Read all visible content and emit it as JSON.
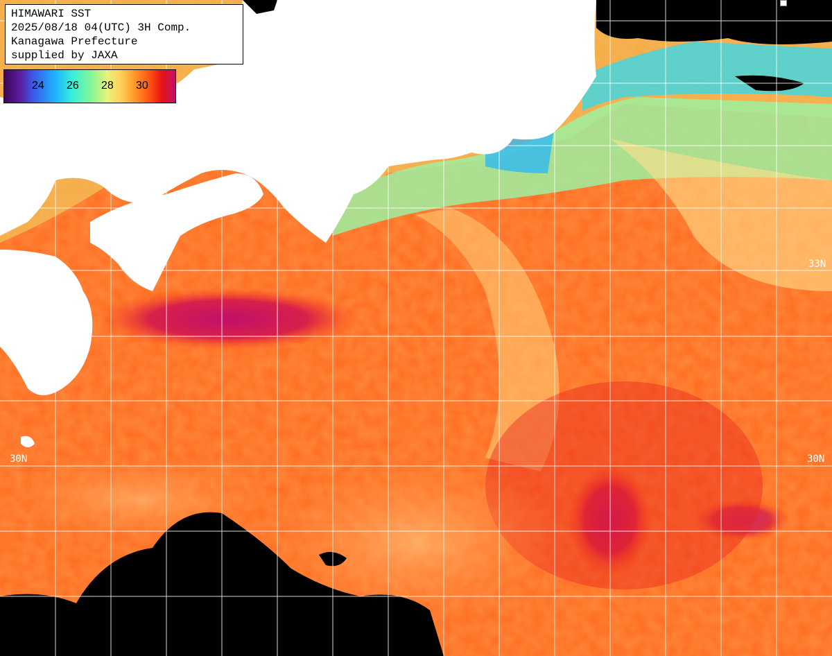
{
  "title": {
    "line1": "HIMAWARI SST",
    "line2": "2025/08/18 04(UTC) 3H Comp.",
    "line3": "Kanagawa Prefecture",
    "line4": "supplied by JAXA"
  },
  "color_scale": {
    "ticks": [
      "24",
      "26",
      "28",
      "30"
    ]
  },
  "latitude_labels": {
    "lat_33": "33N",
    "lat_30": "30N"
  },
  "colors": {
    "warm_ocean": "#ff5a14",
    "hot_core": "#c0106a",
    "cool_coast": "#7ef59a",
    "land": "#ffffff",
    "cloud_missing": "#000000",
    "grid": "#ffffff"
  }
}
